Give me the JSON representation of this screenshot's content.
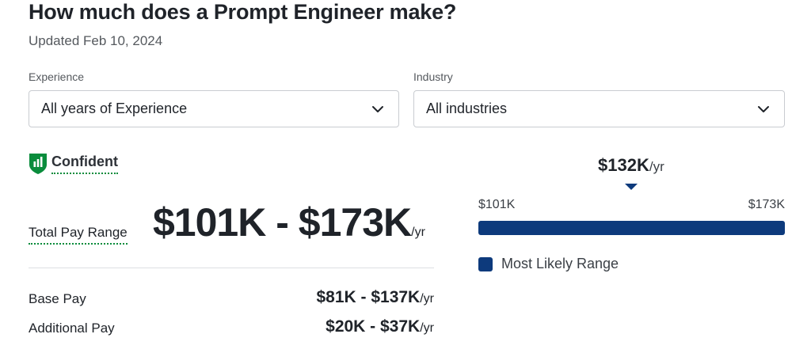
{
  "header": {
    "title": "How much does a Prompt Engineer make?",
    "updated": "Updated Feb 10, 2024"
  },
  "filters": {
    "experience": {
      "label": "Experience",
      "value": "All years of Experience"
    },
    "industry": {
      "label": "Industry",
      "value": "All industries"
    }
  },
  "confidence": {
    "label": "Confident",
    "icon": "shield-chart-icon",
    "color": "#0a8c3c"
  },
  "total_pay": {
    "label": "Total Pay Range",
    "value": "$101K - $173K",
    "unit": "/yr"
  },
  "breakdown": [
    {
      "label": "Base Pay",
      "value": "$81K - $137K",
      "unit": "/yr"
    },
    {
      "label": "Additional Pay",
      "value": "$20K - $37K",
      "unit": "/yr"
    }
  ],
  "range_chart": {
    "median": "$132K",
    "median_unit": "/yr",
    "min_label": "$101K",
    "max_label": "$173K",
    "min": 101,
    "max": 173,
    "median_value": 132,
    "bar_color": "#0d3a7c",
    "legend": "Most Likely Range"
  }
}
